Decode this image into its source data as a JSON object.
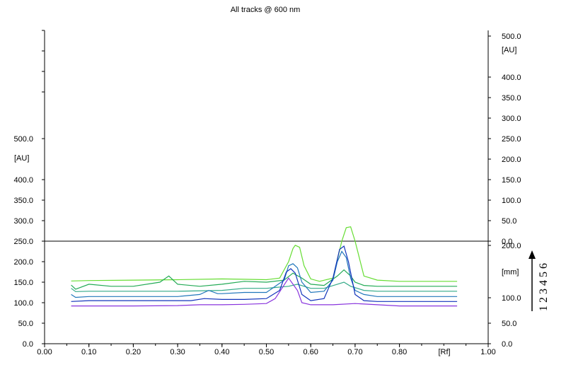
{
  "chart_data": {
    "type": "line",
    "title": "All tracks @ 600 nm",
    "x_axis": {
      "label": "[Rf]",
      "range": [
        0,
        1
      ],
      "ticks": [
        "0.00",
        "0.10",
        "0.20",
        "0.30",
        "0.40",
        "0.50",
        "0.60",
        "0.70",
        "0.80",
        "1.00"
      ],
      "tick_values": [
        0,
        0.1,
        0.2,
        0.3,
        0.4,
        0.5,
        0.6,
        0.7,
        0.8,
        1.0
      ]
    },
    "left_axis": {
      "unit": "[AU]",
      "range": [
        0,
        500
      ],
      "tick_values": [
        0,
        50,
        100,
        150,
        200,
        250,
        300,
        350,
        400,
        500
      ],
      "ticks": [
        "0.0",
        "50.0",
        "100.0",
        "150.0",
        "200.0",
        "250.0",
        "300.0",
        "350.0",
        "400.0",
        "500.0"
      ]
    },
    "right_axis_top": {
      "unit": "[AU]",
      "range": [
        0,
        500
      ],
      "tick_values": [
        0,
        50,
        100,
        150,
        200,
        250,
        300,
        350,
        400,
        500
      ],
      "ticks": [
        "0.0",
        "50.0",
        "100.0",
        "150.0",
        "200.0",
        "250.0",
        "300.0",
        "350.0",
        "400.0",
        "500.0"
      ]
    },
    "right_axis_bottom": {
      "unit": "[mm]",
      "tick_values": [
        0,
        50,
        100,
        200
      ],
      "ticks": [
        "0.0",
        "50.0",
        "100.0",
        "200.0"
      ]
    },
    "track_digits": "1 2 3 4 5 6",
    "grid": false,
    "series": [
      {
        "color": "#66dd33",
        "x": [
          0.06,
          0.1,
          0.2,
          0.3,
          0.4,
          0.45,
          0.5,
          0.53,
          0.55,
          0.56,
          0.565,
          0.575,
          0.585,
          0.6,
          0.62,
          0.65,
          0.67,
          0.68,
          0.69,
          0.7,
          0.72,
          0.75,
          0.8,
          0.93
        ],
        "y": [
          153,
          154,
          155,
          156,
          158,
          157,
          156,
          160,
          200,
          232,
          240,
          235,
          190,
          158,
          152,
          160,
          250,
          283,
          285,
          250,
          165,
          155,
          152,
          152
        ]
      },
      {
        "color": "#22aa55",
        "x": [
          0.06,
          0.07,
          0.1,
          0.15,
          0.2,
          0.26,
          0.28,
          0.3,
          0.35,
          0.4,
          0.45,
          0.5,
          0.54,
          0.56,
          0.58,
          0.6,
          0.63,
          0.66,
          0.675,
          0.69,
          0.7,
          0.72,
          0.75,
          0.8,
          0.93
        ],
        "y": [
          143,
          133,
          145,
          140,
          140,
          150,
          165,
          145,
          140,
          145,
          152,
          150,
          155,
          172,
          160,
          145,
          142,
          165,
          180,
          165,
          150,
          142,
          140,
          140,
          140
        ]
      },
      {
        "color": "#33aa88",
        "x": [
          0.06,
          0.07,
          0.1,
          0.2,
          0.3,
          0.4,
          0.45,
          0.5,
          0.55,
          0.57,
          0.6,
          0.63,
          0.66,
          0.675,
          0.69,
          0.72,
          0.75,
          0.8,
          0.93
        ],
        "y": [
          135,
          127,
          128,
          128,
          128,
          130,
          135,
          135,
          140,
          145,
          135,
          135,
          145,
          150,
          140,
          130,
          128,
          128,
          128
        ]
      },
      {
        "color": "#2277bb",
        "x": [
          0.06,
          0.07,
          0.1,
          0.2,
          0.3,
          0.35,
          0.37,
          0.39,
          0.4,
          0.45,
          0.5,
          0.54,
          0.55,
          0.56,
          0.57,
          0.58,
          0.6,
          0.63,
          0.65,
          0.66,
          0.67,
          0.68,
          0.69,
          0.7,
          0.72,
          0.75,
          0.8,
          0.93
        ],
        "y": [
          120,
          113,
          115,
          115,
          115,
          120,
          130,
          122,
          122,
          125,
          125,
          155,
          190,
          195,
          185,
          150,
          125,
          128,
          155,
          200,
          225,
          210,
          160,
          130,
          120,
          115,
          115,
          115
        ]
      },
      {
        "color": "#1133bb",
        "x": [
          0.06,
          0.1,
          0.2,
          0.3,
          0.33,
          0.36,
          0.4,
          0.45,
          0.5,
          0.53,
          0.545,
          0.555,
          0.565,
          0.58,
          0.6,
          0.63,
          0.65,
          0.665,
          0.675,
          0.685,
          0.7,
          0.72,
          0.75,
          0.8,
          0.93
        ],
        "y": [
          103,
          105,
          105,
          105,
          105,
          110,
          108,
          108,
          110,
          130,
          175,
          183,
          172,
          120,
          105,
          110,
          160,
          230,
          238,
          200,
          120,
          105,
          103,
          103,
          103
        ]
      },
      {
        "color": "#8833dd",
        "x": [
          0.06,
          0.1,
          0.2,
          0.3,
          0.35,
          0.4,
          0.45,
          0.5,
          0.52,
          0.55,
          0.57,
          0.58,
          0.6,
          0.65,
          0.7,
          0.75,
          0.8,
          0.93
        ],
        "y": [
          92,
          92,
          92,
          93,
          95,
          95,
          96,
          98,
          110,
          160,
          130,
          100,
          95,
          95,
          98,
          95,
          92,
          92
        ]
      }
    ]
  }
}
